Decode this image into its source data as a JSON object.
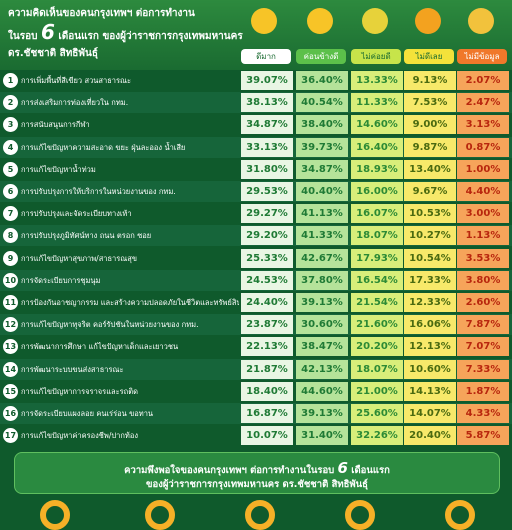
{
  "header": {
    "title_line1": "ความคิดเห็นของคนกรุงเทพฯ ต่อการทำงาน",
    "title_line2_pre": "ในรอบ",
    "title_number": "6",
    "title_line2_post": "เดือนแรก ของผู้ว่าราชการกรุงเทพมหานคร",
    "title_line3": "ดร.ชัชชาติ สิทธิพันธุ์"
  },
  "table": {
    "columns": [
      "ดีมาก",
      "ค่อนข้างดี",
      "ไม่ค่อยดี",
      "ไม่ดีเลย",
      "ไม่มีข้อมูล"
    ],
    "rows": [
      {
        "no": "1",
        "topic": "การเพิ่มพื้นที่สีเขียว สวนสาธารณะ",
        "values": [
          "39.07%",
          "36.40%",
          "13.33%",
          "9.13%",
          "2.07%"
        ]
      },
      {
        "no": "2",
        "topic": "การส่งเสริมการท่องเที่ยวใน กทม.",
        "values": [
          "38.13%",
          "40.54%",
          "11.33%",
          "7.53%",
          "2.47%"
        ]
      },
      {
        "no": "3",
        "topic": "การสนับสนุนการกีฬา",
        "values": [
          "34.87%",
          "38.40%",
          "14.60%",
          "9.00%",
          "3.13%"
        ]
      },
      {
        "no": "4",
        "topic": "การแก้ไขปัญหาความสะอาด ขยะ ฝุ่นละออง น้ำเสีย",
        "values": [
          "33.13%",
          "39.73%",
          "16.40%",
          "9.87%",
          "0.87%"
        ]
      },
      {
        "no": "5",
        "topic": "การแก้ไขปัญหาน้ำท่วม",
        "values": [
          "31.80%",
          "34.87%",
          "18.93%",
          "13.40%",
          "1.00%"
        ]
      },
      {
        "no": "6",
        "topic": "การปรับปรุงการให้บริการในหน่วยงานของ กทม.",
        "values": [
          "29.53%",
          "40.40%",
          "16.00%",
          "9.67%",
          "4.40%"
        ]
      },
      {
        "no": "7",
        "topic": "การปรับปรุงและจัดระเบียบทางเท้า",
        "values": [
          "29.27%",
          "41.13%",
          "16.07%",
          "10.53%",
          "3.00%"
        ]
      },
      {
        "no": "8",
        "topic": "การปรับปรุงภูมิทัศน์ทาง ถนน ตรอก ซอย",
        "values": [
          "29.20%",
          "41.33%",
          "18.07%",
          "10.27%",
          "1.13%"
        ]
      },
      {
        "no": "9",
        "topic": "การแก้ไขปัญหาสุขภาพ/สาธารณสุข",
        "values": [
          "25.33%",
          "42.67%",
          "17.93%",
          "10.54%",
          "3.53%"
        ]
      },
      {
        "no": "10",
        "topic": "การจัดระเบียบการชุมนุม",
        "values": [
          "24.53%",
          "37.80%",
          "16.54%",
          "17.33%",
          "3.80%"
        ]
      },
      {
        "no": "11",
        "topic": "การป้องกันอาชญากรรม และสร้างความปลอดภัยในชีวิตและทรัพย์สิน",
        "values": [
          "24.40%",
          "39.13%",
          "21.54%",
          "12.33%",
          "2.60%"
        ]
      },
      {
        "no": "12",
        "topic": "การแก้ไขปัญหาทุจริต คอร์รัปชันในหน่วยงานของ กทม.",
        "values": [
          "23.87%",
          "30.60%",
          "21.60%",
          "16.06%",
          "7.87%"
        ]
      },
      {
        "no": "13",
        "topic": "การพัฒนาการศึกษา แก้ไขปัญหาเด็กและเยาวชน",
        "values": [
          "22.13%",
          "38.47%",
          "20.20%",
          "12.13%",
          "7.07%"
        ]
      },
      {
        "no": "14",
        "topic": "การพัฒนาระบบขนส่งสาธารณะ",
        "values": [
          "21.87%",
          "42.13%",
          "18.07%",
          "10.60%",
          "7.33%"
        ]
      },
      {
        "no": "15",
        "topic": "การแก้ไขปัญหาการจราจรและรถติด",
        "values": [
          "18.40%",
          "44.60%",
          "21.00%",
          "14.13%",
          "1.87%"
        ]
      },
      {
        "no": "16",
        "topic": "การจัดระเบียบแผงลอย คนเร่ร่อน ขอทาน",
        "values": [
          "16.87%",
          "39.13%",
          "25.60%",
          "14.07%",
          "4.33%"
        ]
      },
      {
        "no": "17",
        "topic": "การแก้ไขปัญหาค่าครองชีพ/ปากท้อง",
        "values": [
          "10.07%",
          "31.40%",
          "32.26%",
          "20.40%",
          "5.87%"
        ]
      }
    ]
  },
  "footer": {
    "line1_pre": "ความพึงพอใจของคนกรุงเทพฯ ต่อการทำงานในรอบ",
    "number": "6",
    "line1_post": "เดือนแรก",
    "line2": "ของผู้ว่าราชการกรุงเทพมหานคร ดร.ชัชชาติ สิทธิพันธุ์"
  }
}
